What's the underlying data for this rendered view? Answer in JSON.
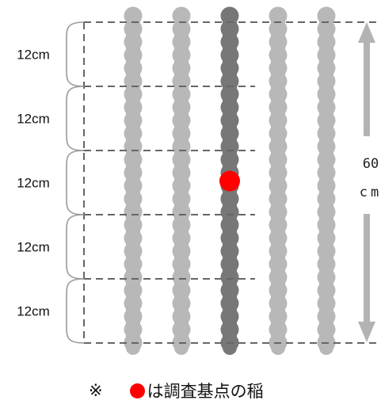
{
  "spacing_labels": [
    "12cm",
    "12cm",
    "12cm",
    "12cm",
    "12cm"
  ],
  "total": {
    "value": "60",
    "unit": "cm"
  },
  "rows": {
    "count": 5,
    "highlighted_index": 2
  },
  "sample_point": {
    "row": 2,
    "segment": 2
  },
  "footnote": {
    "mark": "※",
    "text": "は調査基点の稲"
  },
  "colors": {
    "row": "#b8b8b8",
    "highlighted_row": "#777777",
    "sample_point": "#ff0000",
    "dash": "#666666",
    "arrow": "#b3b3b3"
  }
}
